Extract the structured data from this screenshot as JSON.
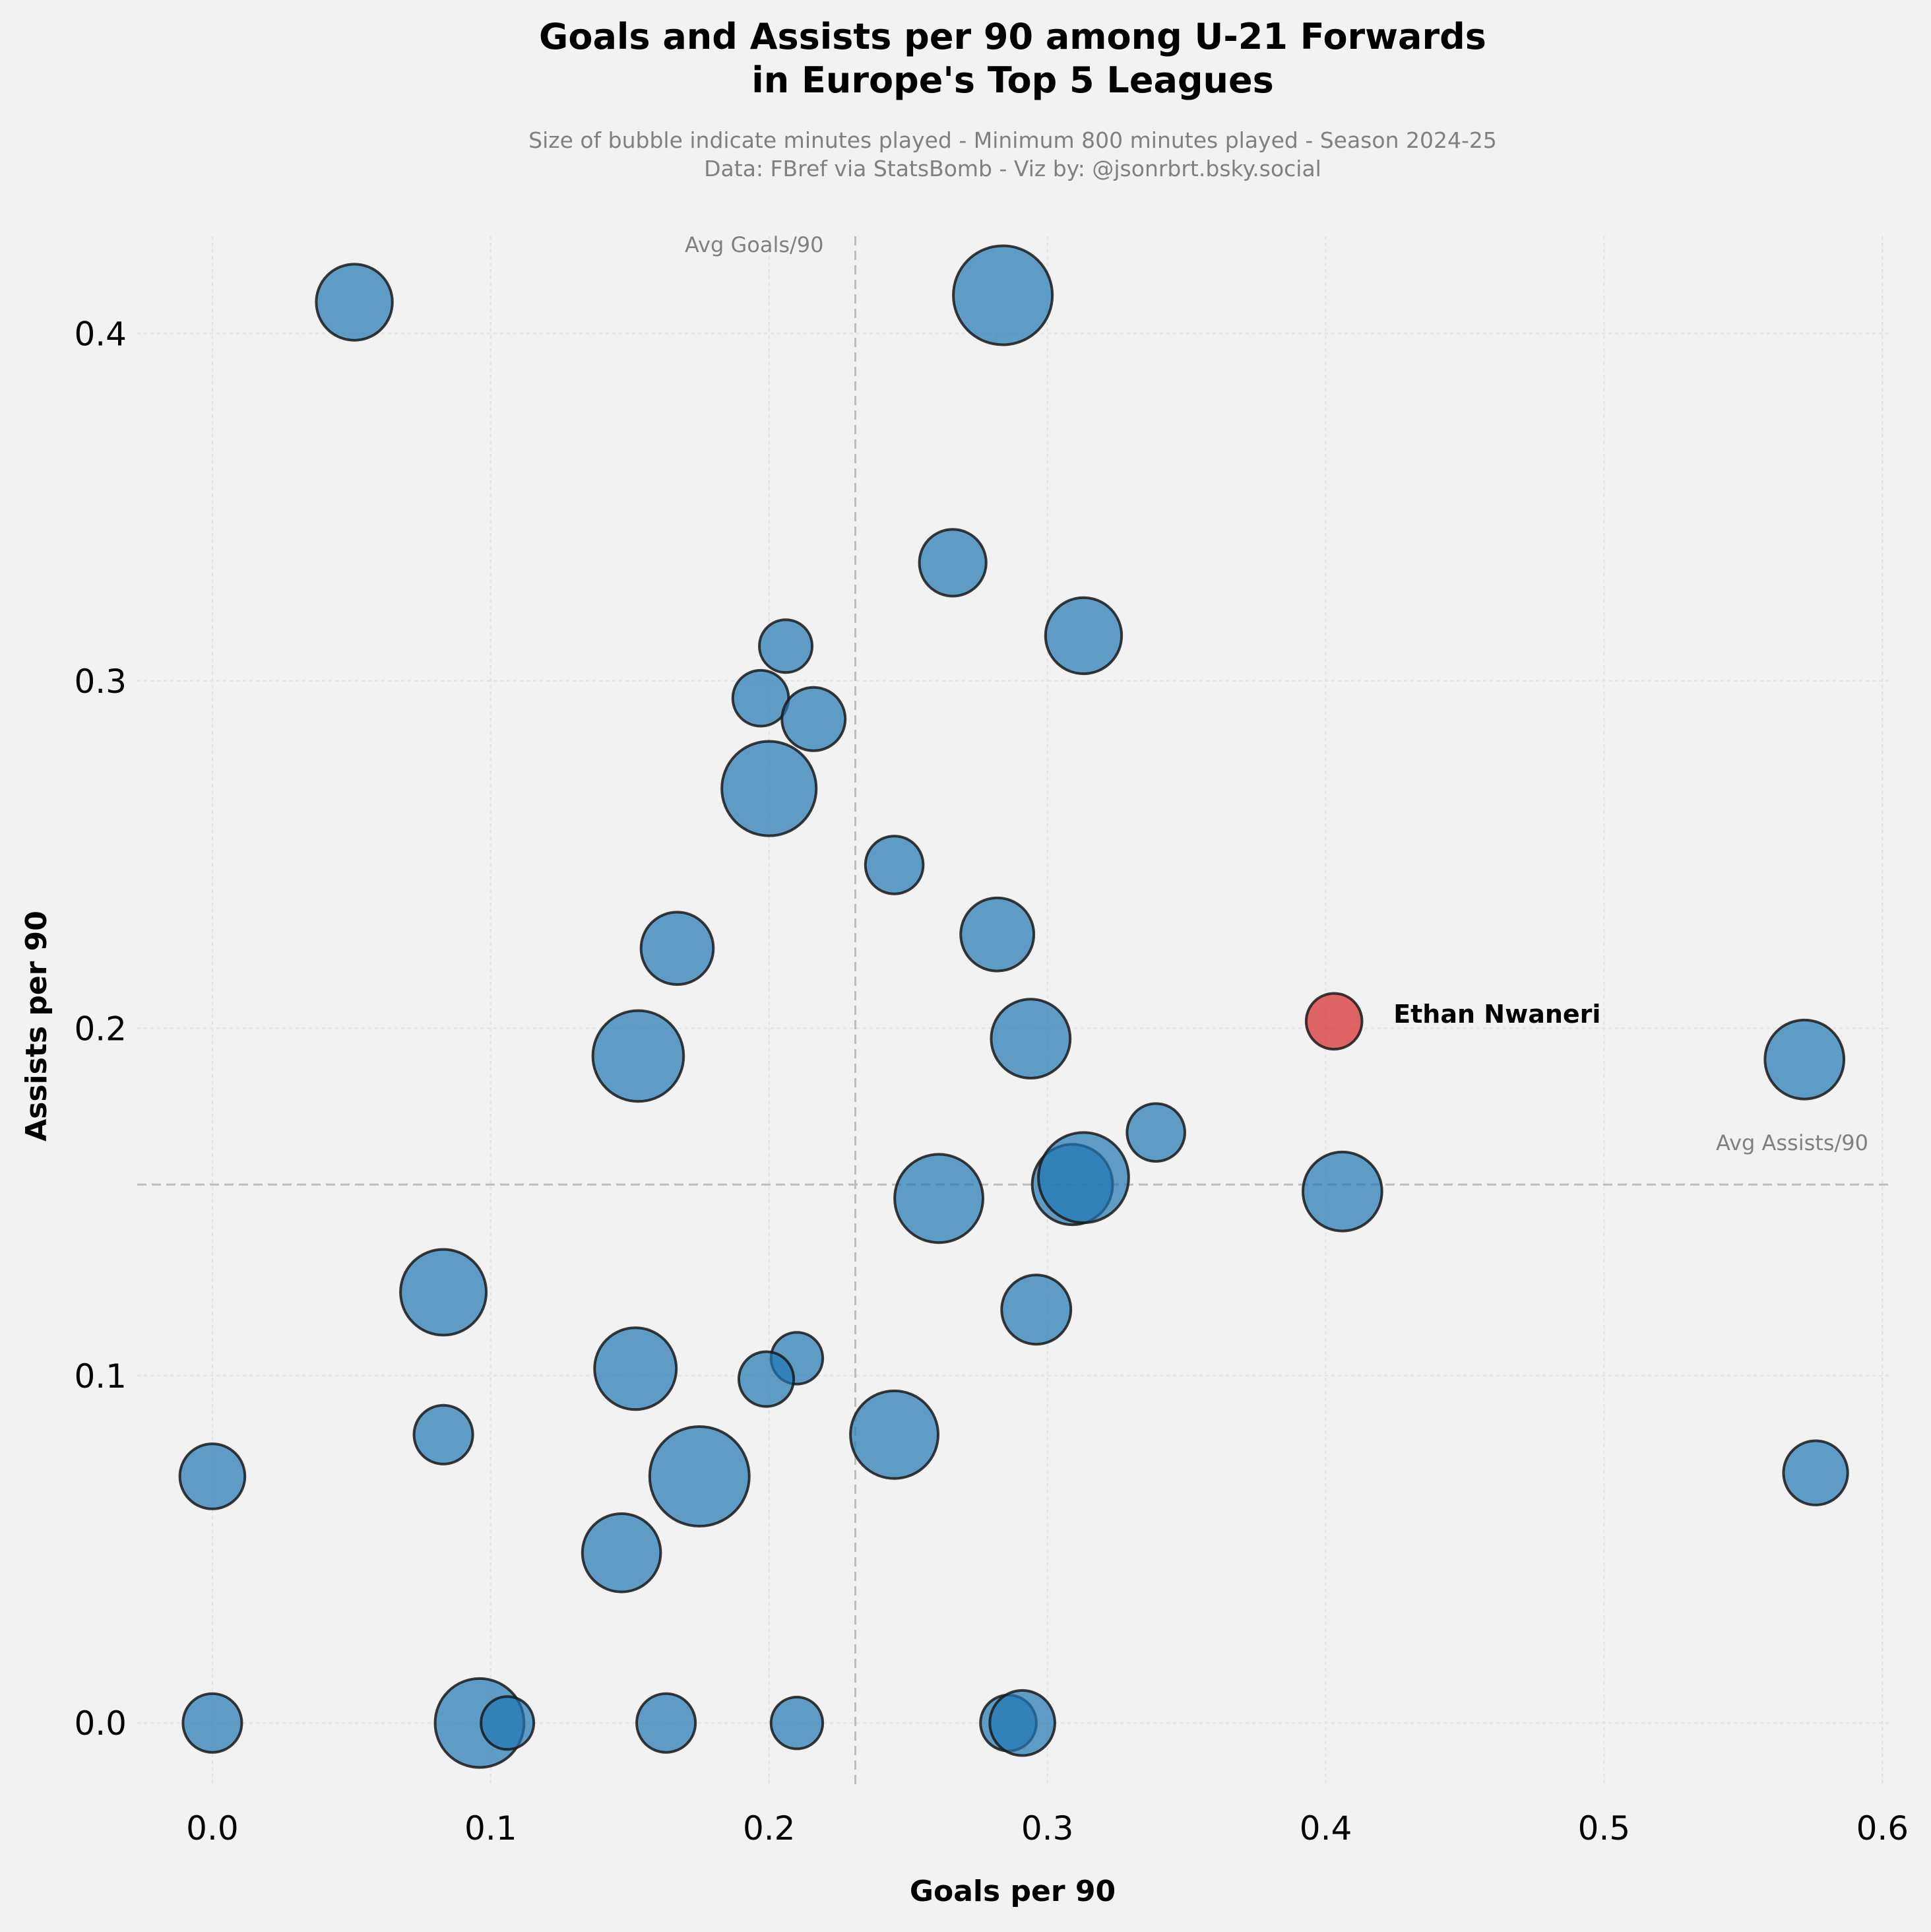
{
  "chart_data": {
    "type": "scatter",
    "title": [
      "Goals and Assists per 90 among U-21 Forwards",
      "in Europe's Top 5 Leagues"
    ],
    "subtitle": [
      "Size of bubble indicate minutes played - Minimum 800 minutes played - Season 2024-25",
      "Data: FBref via StatsBomb - Viz by: @jsonrbrt.bsky.social"
    ],
    "xlabel": "Goals per 90",
    "ylabel": "Assists per 90",
    "xlim": [
      -0.027,
      0.603
    ],
    "ylim": [
      -0.018,
      0.428
    ],
    "xticks": [
      "0.0",
      "0.1",
      "0.2",
      "0.3",
      "0.4",
      "0.5",
      "0.6"
    ],
    "yticks": [
      "0.0",
      "0.1",
      "0.2",
      "0.3",
      "0.4"
    ],
    "grid": true,
    "avg_goals": 0.231,
    "avg_assists": 0.155,
    "avg_goals_label": "Avg Goals/90",
    "avg_assists_label": "Avg Assists/90",
    "size_note": "bubble size = minutes played",
    "colors": {
      "points": "#1f77b4",
      "highlight": "#d62728",
      "background": "#f2f2f2"
    },
    "highlight": {
      "name": "Ethan Nwaneri",
      "x": 0.403,
      "y": 0.202,
      "size": 0.28
    },
    "points": [
      {
        "x": 0.051,
        "y": 0.409,
        "size": 0.52
      },
      {
        "x": 0.284,
        "y": 0.411,
        "size": 0.88
      },
      {
        "x": 0.266,
        "y": 0.334,
        "size": 0.4
      },
      {
        "x": 0.313,
        "y": 0.313,
        "size": 0.52
      },
      {
        "x": 0.206,
        "y": 0.31,
        "size": 0.25
      },
      {
        "x": 0.197,
        "y": 0.295,
        "size": 0.28
      },
      {
        "x": 0.216,
        "y": 0.289,
        "size": 0.36
      },
      {
        "x": 0.2,
        "y": 0.269,
        "size": 0.8
      },
      {
        "x": 0.245,
        "y": 0.247,
        "size": 0.3
      },
      {
        "x": 0.167,
        "y": 0.223,
        "size": 0.47
      },
      {
        "x": 0.282,
        "y": 0.227,
        "size": 0.48
      },
      {
        "x": 0.153,
        "y": 0.192,
        "size": 0.74
      },
      {
        "x": 0.294,
        "y": 0.197,
        "size": 0.56
      },
      {
        "x": 0.572,
        "y": 0.191,
        "size": 0.56
      },
      {
        "x": 0.339,
        "y": 0.17,
        "size": 0.3
      },
      {
        "x": 0.261,
        "y": 0.151,
        "size": 0.7
      },
      {
        "x": 0.309,
        "y": 0.155,
        "size": 0.58
      },
      {
        "x": 0.313,
        "y": 0.157,
        "size": 0.73
      },
      {
        "x": 0.406,
        "y": 0.153,
        "size": 0.56
      },
      {
        "x": 0.083,
        "y": 0.124,
        "size": 0.66
      },
      {
        "x": 0.296,
        "y": 0.119,
        "size": 0.43
      },
      {
        "x": 0.152,
        "y": 0.102,
        "size": 0.6
      },
      {
        "x": 0.21,
        "y": 0.105,
        "size": 0.24
      },
      {
        "x": 0.199,
        "y": 0.099,
        "size": 0.27
      },
      {
        "x": 0.083,
        "y": 0.083,
        "size": 0.31
      },
      {
        "x": 0.245,
        "y": 0.083,
        "size": 0.69
      },
      {
        "x": 0.175,
        "y": 0.071,
        "size": 0.89
      },
      {
        "x": 0.0,
        "y": 0.071,
        "size": 0.38
      },
      {
        "x": 0.576,
        "y": 0.072,
        "size": 0.37
      },
      {
        "x": 0.147,
        "y": 0.049,
        "size": 0.55
      },
      {
        "x": 0.0,
        "y": 0.0,
        "size": 0.31
      },
      {
        "x": 0.096,
        "y": 0.0,
        "size": 0.71
      },
      {
        "x": 0.106,
        "y": 0.0,
        "size": 0.25
      },
      {
        "x": 0.163,
        "y": 0.0,
        "size": 0.31
      },
      {
        "x": 0.21,
        "y": 0.0,
        "size": 0.24
      },
      {
        "x": 0.286,
        "y": 0.0,
        "size": 0.28
      },
      {
        "x": 0.291,
        "y": 0.0,
        "size": 0.38
      }
    ]
  }
}
